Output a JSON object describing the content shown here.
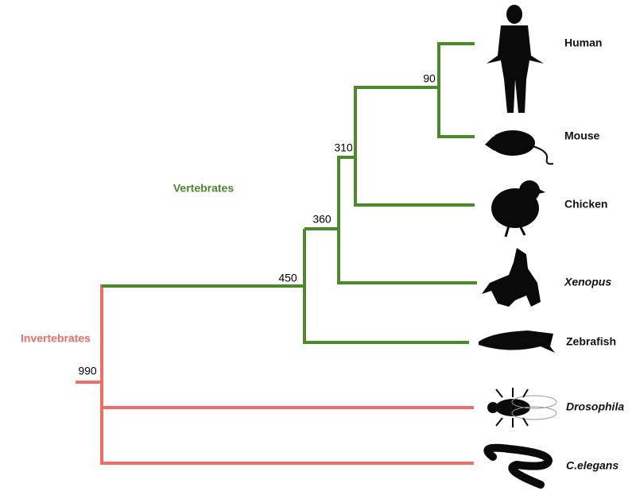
{
  "groups": {
    "vertebrates": "Vertebrates",
    "invertebrates": "Invertebrates"
  },
  "nodes": [
    990,
    450,
    360,
    310,
    90
  ],
  "leaves": [
    "Human",
    "Mouse",
    "Chicken",
    "Xenopus",
    "Zebrafish",
    "Drosophila",
    "C.elegans"
  ]
}
